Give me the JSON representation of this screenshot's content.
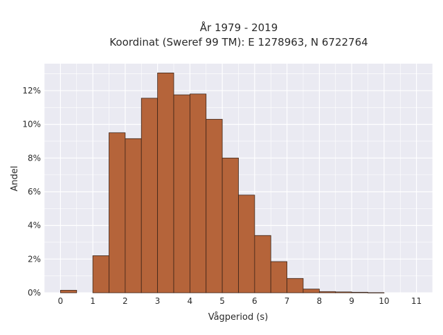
{
  "chart_data": {
    "type": "bar",
    "title_line1": "År 1979 - 2019",
    "title_line2": "Koordinat (Sweref 99 TM): E 1278963, N 6722764",
    "xlabel": "Vågperiod (s)",
    "ylabel": "Andel",
    "xlim": [
      -0.5,
      11.5
    ],
    "ylim": [
      0,
      13.6
    ],
    "x_ticks": [
      0,
      1,
      2,
      3,
      4,
      5,
      6,
      7,
      8,
      9,
      10,
      11
    ],
    "x_tick_labels": [
      "0",
      "1",
      "2",
      "3",
      "4",
      "5",
      "6",
      "7",
      "8",
      "9",
      "10",
      "11"
    ],
    "y_ticks": [
      0,
      2,
      4,
      6,
      8,
      10,
      12
    ],
    "y_tick_labels": [
      "0%",
      "2%",
      "4%",
      "6%",
      "8%",
      "10%",
      "12%"
    ],
    "bin_width": 0.5,
    "bins": [
      {
        "start": 0.0,
        "value": 0.15
      },
      {
        "start": 0.5,
        "value": 0.0
      },
      {
        "start": 1.0,
        "value": 2.2
      },
      {
        "start": 1.5,
        "value": 9.5
      },
      {
        "start": 2.0,
        "value": 9.15
      },
      {
        "start": 2.5,
        "value": 11.55
      },
      {
        "start": 3.0,
        "value": 13.05
      },
      {
        "start": 3.5,
        "value": 11.75
      },
      {
        "start": 4.0,
        "value": 11.8
      },
      {
        "start": 4.5,
        "value": 10.3
      },
      {
        "start": 5.0,
        "value": 8.0
      },
      {
        "start": 5.5,
        "value": 5.8
      },
      {
        "start": 6.0,
        "value": 3.4
      },
      {
        "start": 6.5,
        "value": 1.85
      },
      {
        "start": 7.0,
        "value": 0.85
      },
      {
        "start": 7.5,
        "value": 0.22
      },
      {
        "start": 8.0,
        "value": 0.07
      },
      {
        "start": 8.5,
        "value": 0.05
      },
      {
        "start": 9.0,
        "value": 0.03
      },
      {
        "start": 9.5,
        "value": 0.01
      }
    ],
    "grid": true,
    "colors": {
      "bar_fill": "#b5643a",
      "bar_stroke": "#3b2418",
      "plot_bg": "#eaeaf2",
      "grid": "#ffffff"
    }
  }
}
